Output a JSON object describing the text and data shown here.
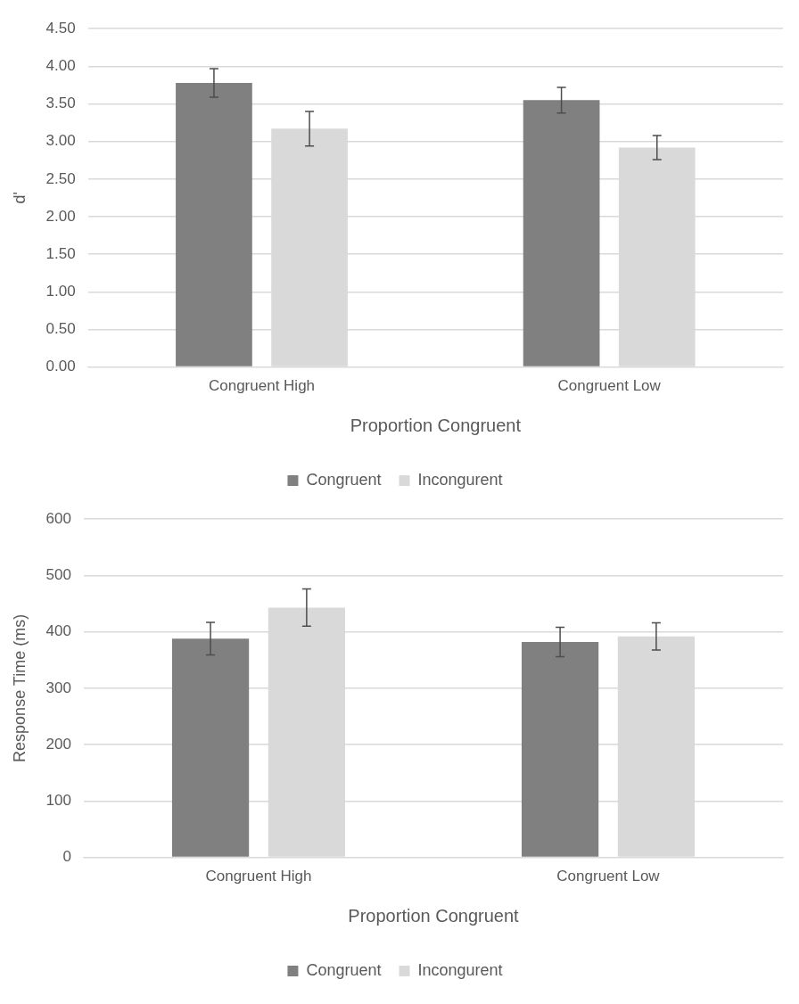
{
  "chart_data": [
    {
      "type": "bar",
      "categories": [
        "Congruent High",
        "Congruent Low"
      ],
      "xlabel": "Proportion Congruent",
      "ylabel": "d'",
      "ylim": [
        0,
        4.5
      ],
      "yticks": [
        {
          "value": 0,
          "label": "0.00"
        },
        {
          "value": 0.5,
          "label": "0.50"
        },
        {
          "value": 1,
          "label": "1.00"
        },
        {
          "value": 1.5,
          "label": "1.50"
        },
        {
          "value": 2,
          "label": "2.00"
        },
        {
          "value": 2.5,
          "label": "2.50"
        },
        {
          "value": 3,
          "label": "3.00"
        },
        {
          "value": 3.5,
          "label": "3.50"
        },
        {
          "value": 4,
          "label": "4.00"
        },
        {
          "value": 4.5,
          "label": "4.50"
        }
      ],
      "grid": "y",
      "legend": "bottom",
      "series": [
        {
          "name": "Congruent",
          "color": "#808080",
          "values": [
            3.78,
            3.55
          ],
          "errors": [
            0.19,
            0.17
          ]
        },
        {
          "name": "Incongurent",
          "color": "#d9d9d9",
          "values": [
            3.17,
            2.92
          ],
          "errors": [
            0.23,
            0.16
          ]
        }
      ]
    },
    {
      "type": "bar",
      "categories": [
        "Congruent High",
        "Congruent Low"
      ],
      "xlabel": "Proportion Congruent",
      "ylabel": "Response Time (ms)",
      "ylim": [
        0,
        600
      ],
      "yticks": [
        0,
        100,
        200,
        300,
        400,
        500,
        600
      ],
      "grid": "y",
      "legend": "bottom",
      "series": [
        {
          "name": "Congruent",
          "color": "#808080",
          "values": [
            388,
            382
          ],
          "errors": [
            29,
            26
          ]
        },
        {
          "name": "Incongurent",
          "color": "#d9d9d9",
          "values": [
            443,
            392
          ],
          "errors": [
            33,
            24
          ]
        }
      ]
    }
  ]
}
